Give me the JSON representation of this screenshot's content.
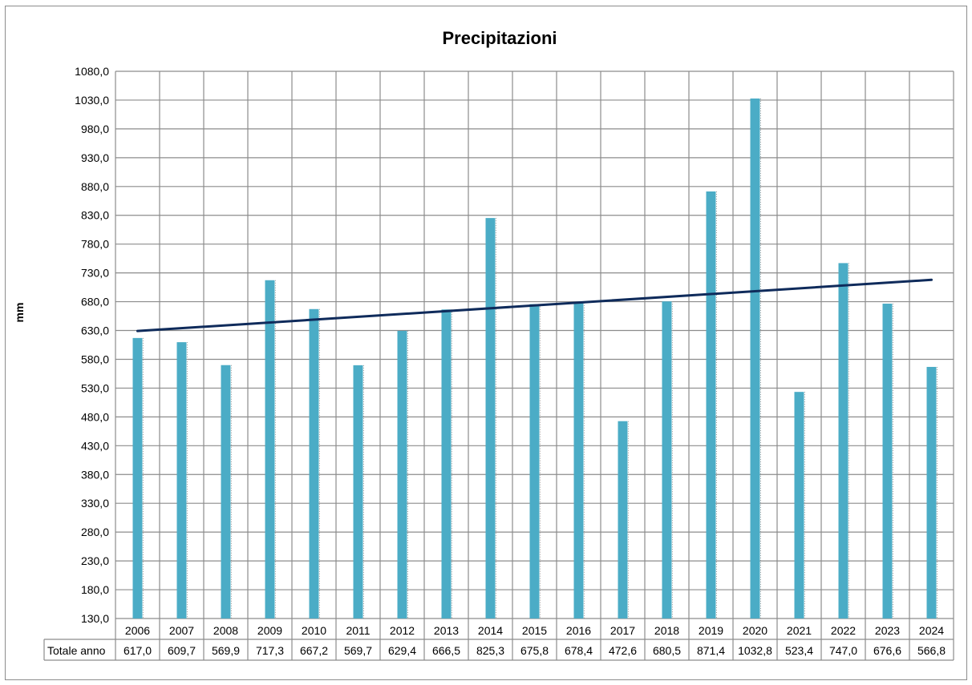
{
  "chart_data": {
    "type": "bar",
    "title": "Precipitazioni",
    "ylabel": "mm",
    "xlabel": "",
    "ylim": [
      130.0,
      1080.0
    ],
    "y_ticks": [
      "1080,0",
      "1030,0",
      "980,0",
      "930,0",
      "880,0",
      "830,0",
      "780,0",
      "730,0",
      "680,0",
      "630,0",
      "580,0",
      "530,0",
      "480,0",
      "430,0",
      "380,0",
      "330,0",
      "280,0",
      "230,0",
      "180,0",
      "130,0"
    ],
    "categories": [
      "2006",
      "2007",
      "2008",
      "2009",
      "2010",
      "2011",
      "2012",
      "2013",
      "2014",
      "2015",
      "2016",
      "2017",
      "2018",
      "2019",
      "2020",
      "2021",
      "2022",
      "2023",
      "2024"
    ],
    "series": [
      {
        "name": "Totale anno",
        "values": [
          617.0,
          609.7,
          569.9,
          717.3,
          667.2,
          569.7,
          629.4,
          666.5,
          825.3,
          675.8,
          678.4,
          472.6,
          680.5,
          871.4,
          1032.8,
          523.4,
          747.0,
          676.6,
          566.8
        ],
        "labels": [
          "617,0",
          "609,7",
          "569,9",
          "717,3",
          "667,2",
          "569,7",
          "629,4",
          "666,5",
          "825,3",
          "675,8",
          "678,4",
          "472,6",
          "680,5",
          "871,4",
          "1032,8",
          "523,4",
          "747,0",
          "676,6",
          "566,8"
        ],
        "color": "#4bacc6"
      }
    ],
    "trendline": {
      "type": "linear",
      "color": "#0f2b5b"
    },
    "grid": true,
    "legend": "data-table-below"
  }
}
